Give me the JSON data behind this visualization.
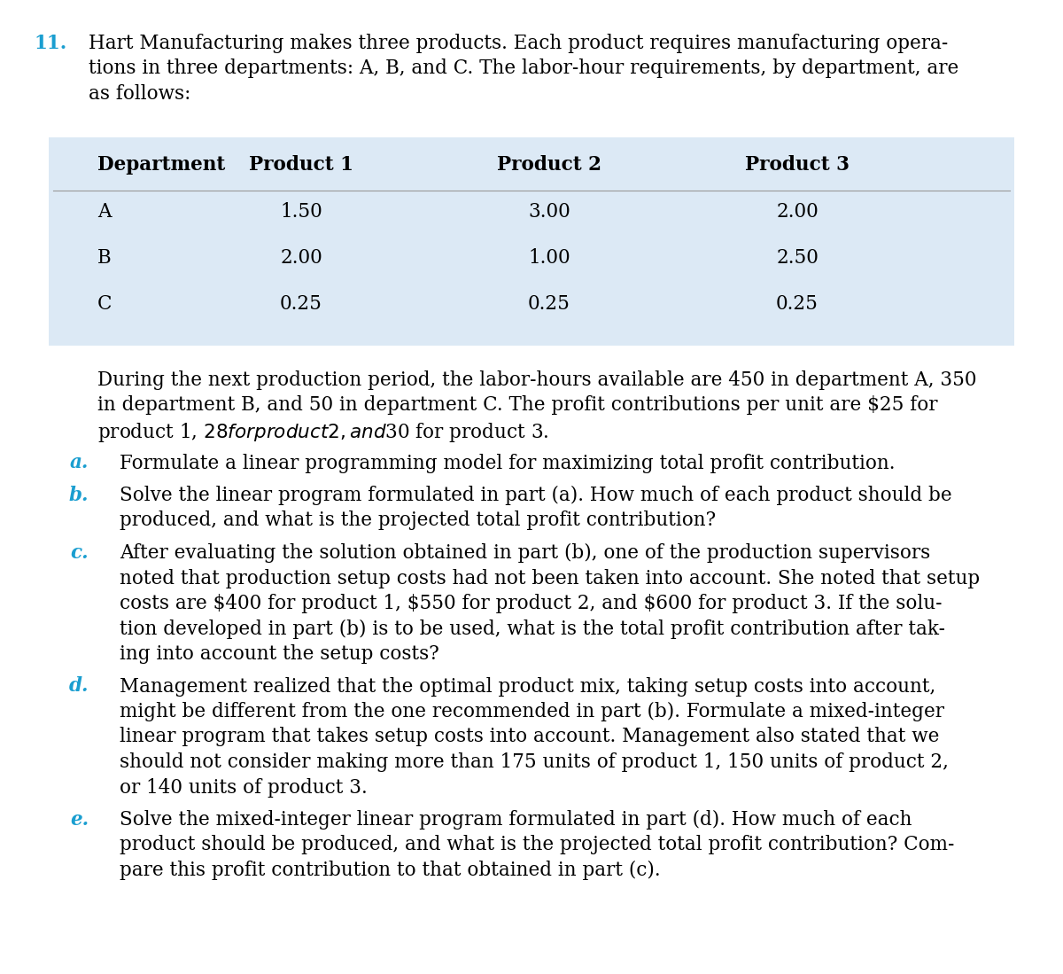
{
  "question_number": "11.",
  "intro_text": "Hart Manufacturing makes three products. Each product requires manufacturing opera-\ntions in three departments: A, B, and C. The labor-hour requirements, by department, are\nas follows:",
  "table_headers": [
    "Department",
    "Product 1",
    "Product 2",
    "Product 3"
  ],
  "table_rows": [
    [
      "A",
      "1.50",
      "3.00",
      "2.00"
    ],
    [
      "B",
      "2.00",
      "1.00",
      "2.50"
    ],
    [
      "C",
      "0.25",
      "0.25",
      "0.25"
    ]
  ],
  "table_bg_color": "#dce9f5",
  "paragraph_text": "During the next production period, the labor-hours available are 450 in department A, 350\nin department B, and 50 in department C. The profit contributions per unit are $25 for\nproduct 1, $28 for product 2, and $30 for product 3.",
  "parts": [
    {
      "label": "a.",
      "color": "#1a9ed0",
      "lines": [
        "Formulate a linear programming model for maximizing total profit contribution."
      ]
    },
    {
      "label": "b.",
      "color": "#1a9ed0",
      "lines": [
        "Solve the linear program formulated in part (a). How much of each product should be",
        "produced, and what is the projected total profit contribution?"
      ]
    },
    {
      "label": "c.",
      "color": "#1a9ed0",
      "lines": [
        "After evaluating the solution obtained in part (b), one of the production supervisors",
        "noted that production setup costs had not been taken into account. She noted that setup",
        "costs are $400 for product 1, $550 for product 2, and $600 for product 3. If the solu-",
        "tion developed in part (b) is to be used, what is the total profit contribution after tak-",
        "ing into account the setup costs?"
      ]
    },
    {
      "label": "d.",
      "color": "#1a9ed0",
      "lines": [
        "Management realized that the optimal product mix, taking setup costs into account,",
        "might be different from the one recommended in part (b). Formulate a mixed-integer",
        "linear program that takes setup costs into account. Management also stated that we",
        "should not consider making more than 175 units of product 1, 150 units of product 2,",
        "or 140 units of product 3."
      ]
    },
    {
      "label": "e.",
      "color": "#1a9ed0",
      "lines": [
        "Solve the mixed-integer linear program formulated in part (d). How much of each",
        "product should be produced, and what is the projected total profit contribution? Com-",
        "pare this profit contribution to that obtained in part (c)."
      ]
    }
  ],
  "bg_color": "#ffffff",
  "text_color": "#000000",
  "number_color": "#1a9ed0",
  "font_size_pt": 15.5
}
